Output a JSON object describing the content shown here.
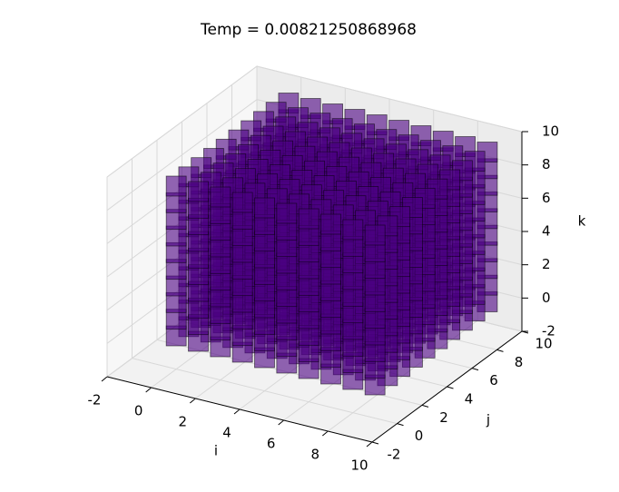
{
  "chart_data": {
    "type": "scatter3d",
    "title": "Temp = 0.00821250868968",
    "xlabel": "i",
    "ylabel": "j",
    "zlabel": "k",
    "i": [
      0,
      1,
      2,
      3,
      4,
      5,
      6,
      7,
      8,
      9
    ],
    "j": [
      0,
      1,
      2,
      3,
      4,
      5,
      6,
      7,
      8,
      9
    ],
    "k": [
      0,
      1,
      2,
      3,
      4,
      5,
      6,
      7,
      8,
      9
    ],
    "color": "#4b0082",
    "marker": "square",
    "xlim": [
      -2,
      10
    ],
    "xticks": [
      -2,
      0,
      2,
      4,
      6,
      8,
      10
    ],
    "ylim": [
      -2,
      10
    ],
    "yticks": [
      -2,
      0,
      2,
      4,
      6,
      8,
      10
    ],
    "zlim": [
      -2,
      10
    ],
    "zticks": [
      -2,
      0,
      2,
      4,
      6,
      8,
      10
    ],
    "grid": true
  }
}
